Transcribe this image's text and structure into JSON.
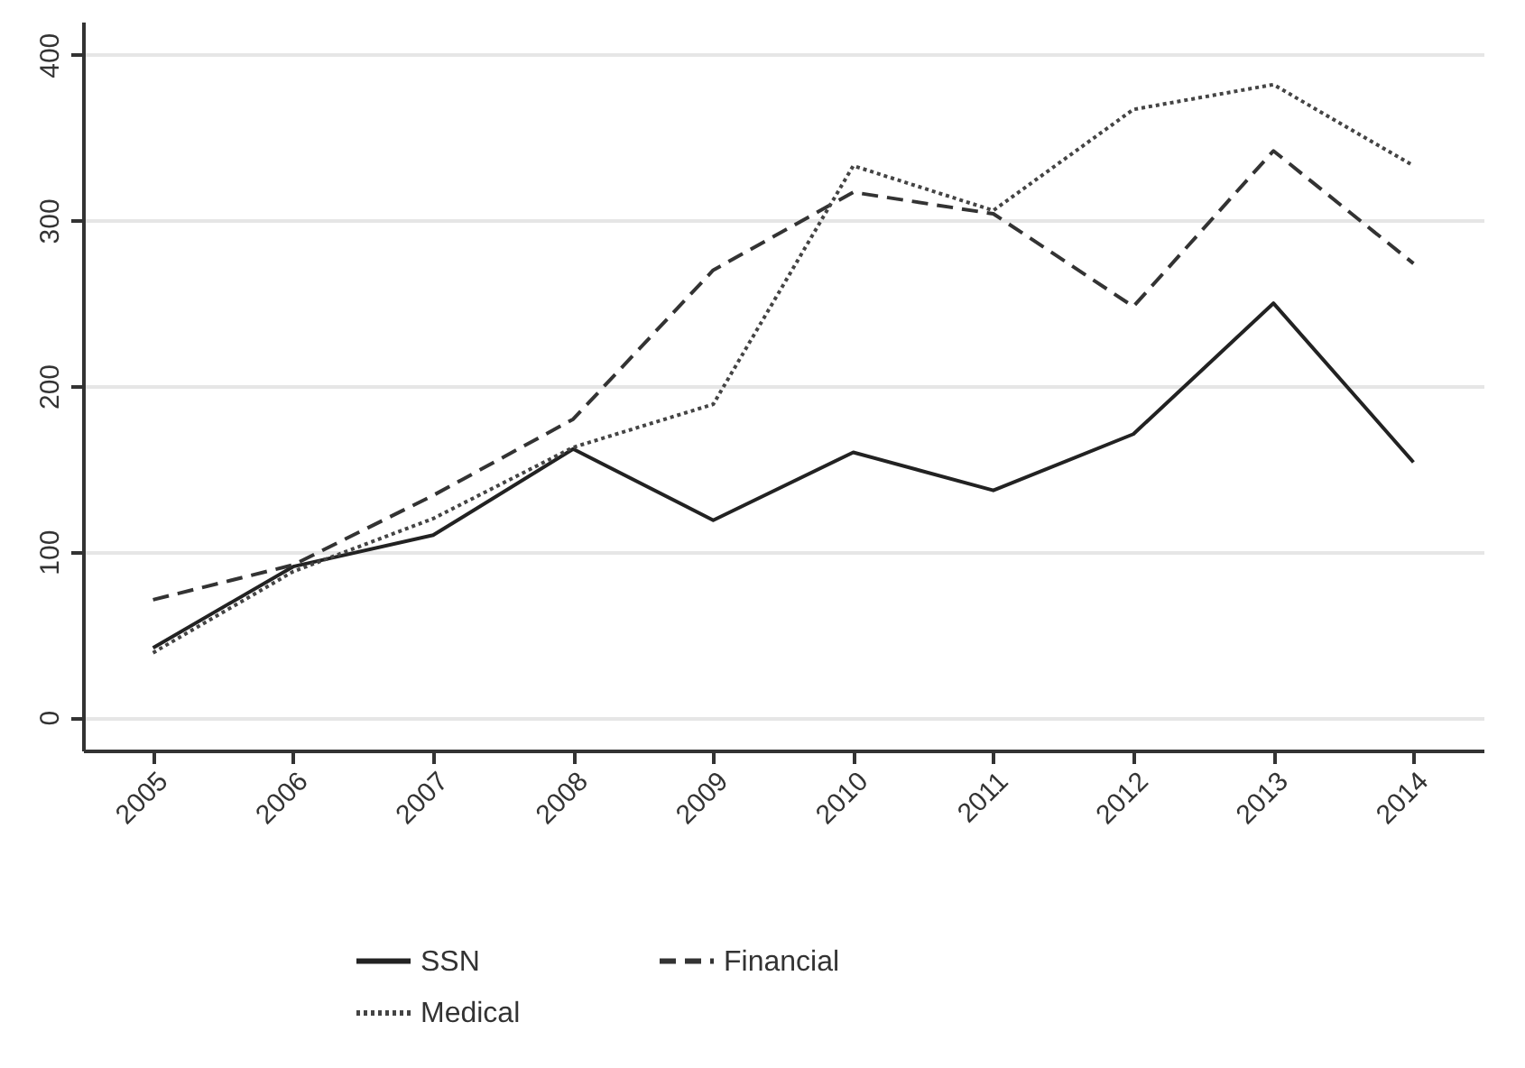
{
  "chart_data": {
    "type": "line",
    "categories": [
      "2005",
      "2006",
      "2007",
      "2008",
      "2009",
      "2010",
      "2011",
      "2012",
      "2013",
      "2014"
    ],
    "series": [
      {
        "name": "SSN",
        "color": "#222222",
        "line_style": "solid",
        "values": [
          42,
          91,
          110,
          162,
          119,
          160,
          137,
          171,
          250,
          154
        ]
      },
      {
        "name": "Financial",
        "color": "#333333",
        "line_style": "dashed",
        "values": [
          71,
          92,
          134,
          180,
          270,
          317,
          304,
          248,
          342,
          274
        ]
      },
      {
        "name": "Medical",
        "color": "#444444",
        "line_style": "dotted",
        "values": [
          39,
          88,
          120,
          163,
          189,
          333,
          306,
          367,
          382,
          333
        ]
      }
    ],
    "ylim": [
      -20,
      420
    ],
    "yticks": [
      0,
      100,
      200,
      300,
      400
    ],
    "grid": "y",
    "legend": "bottom"
  }
}
